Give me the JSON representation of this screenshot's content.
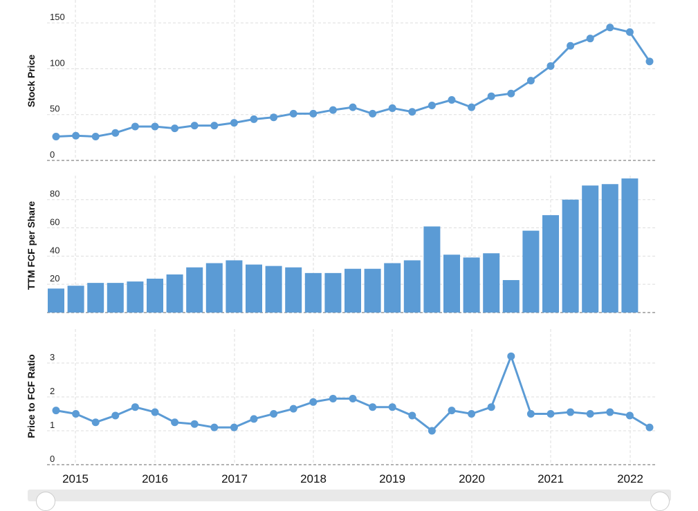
{
  "colors": {
    "accent": "#5b9bd5",
    "grid": "#dddddd"
  },
  "chart_data": [
    {
      "type": "line",
      "ylabel": "Stock Price",
      "ylim": [
        0,
        175
      ],
      "yticks": [
        0,
        50,
        100,
        150
      ],
      "x": [
        "2015-Q1",
        "2015-Q2",
        "2015-Q3",
        "2015-Q4",
        "2016-Q1",
        "2016-Q2",
        "2016-Q3",
        "2016-Q4",
        "2017-Q1",
        "2017-Q2",
        "2017-Q3",
        "2017-Q4",
        "2018-Q1",
        "2018-Q2",
        "2018-Q3",
        "2018-Q4",
        "2019-Q1",
        "2019-Q2",
        "2019-Q3",
        "2019-Q4",
        "2020-Q1",
        "2020-Q2",
        "2020-Q3",
        "2020-Q4",
        "2021-Q1",
        "2021-Q2",
        "2021-Q3",
        "2021-Q4",
        "2022-Q1",
        "2022-Q2"
      ],
      "values": [
        26,
        27,
        26,
        30,
        37,
        37,
        35,
        38,
        38,
        41,
        45,
        47,
        51,
        51,
        55,
        58,
        51,
        57,
        53,
        60,
        66,
        58,
        70,
        73,
        87,
        103,
        125,
        133,
        145,
        140
      ],
      "values_extra": [
        108
      ]
    },
    {
      "type": "bar",
      "ylabel": "TTM FCF per Share",
      "ylim": [
        0,
        97
      ],
      "yticks": [
        0,
        20,
        40,
        60,
        80
      ],
      "values": [
        17,
        19,
        21,
        21,
        22,
        24,
        27,
        32,
        35,
        37,
        34,
        33,
        32,
        28,
        28,
        31,
        31,
        35,
        37,
        61,
        41,
        39,
        42,
        23,
        58,
        69,
        80,
        90,
        91,
        95
      ]
    },
    {
      "type": "line",
      "ylabel": "Price to FCF Ratio",
      "ylim": [
        0,
        4
      ],
      "yticks": [
        0,
        1,
        2,
        3
      ],
      "values": [
        1.6,
        1.5,
        1.25,
        1.45,
        1.7,
        1.55,
        1.25,
        1.2,
        1.1,
        1.1,
        1.35,
        1.5,
        1.65,
        1.85,
        1.95,
        1.95,
        1.7,
        1.7,
        1.45,
        1.0,
        1.6,
        1.5,
        1.7,
        3.2,
        1.5,
        1.5,
        1.55,
        1.5,
        1.55,
        1.45,
        1.1
      ]
    }
  ],
  "x_axis": {
    "tick_labels": [
      "2015",
      "2016",
      "2017",
      "2018",
      "2019",
      "2020",
      "2021",
      "2022"
    ]
  }
}
